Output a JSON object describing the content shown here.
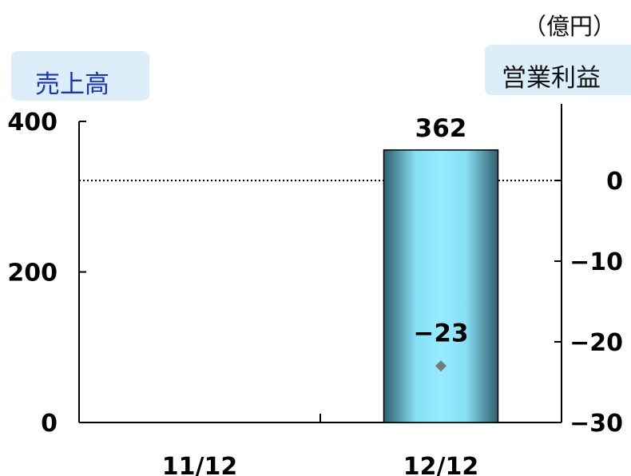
{
  "labels": {
    "unit": "（億円）",
    "left_axis_title": "売上高",
    "right_axis_title": "営業利益"
  },
  "chart_data": {
    "type": "bar",
    "categories": [
      "11/12",
      "12/12"
    ],
    "series": [
      {
        "axis": "left",
        "kind": "bar",
        "values": [
          null,
          362
        ],
        "data_labels": [
          "",
          "362"
        ],
        "color": "#8fe8ff"
      },
      {
        "axis": "right",
        "kind": "scatter",
        "values": [
          null,
          -23
        ],
        "data_labels": [
          "",
          "−23"
        ],
        "color": "#7a7a7a",
        "marker": "diamond"
      }
    ],
    "left_axis": {
      "ticks": [
        "0",
        "200",
        "400"
      ],
      "ylim": [
        0,
        400
      ]
    },
    "right_axis": {
      "ticks": [
        "0",
        "−10",
        "−20",
        "−30"
      ],
      "ylim": [
        -30,
        0
      ],
      "zero_reference_line": "dotted"
    },
    "grid": false,
    "legend": "none"
  }
}
